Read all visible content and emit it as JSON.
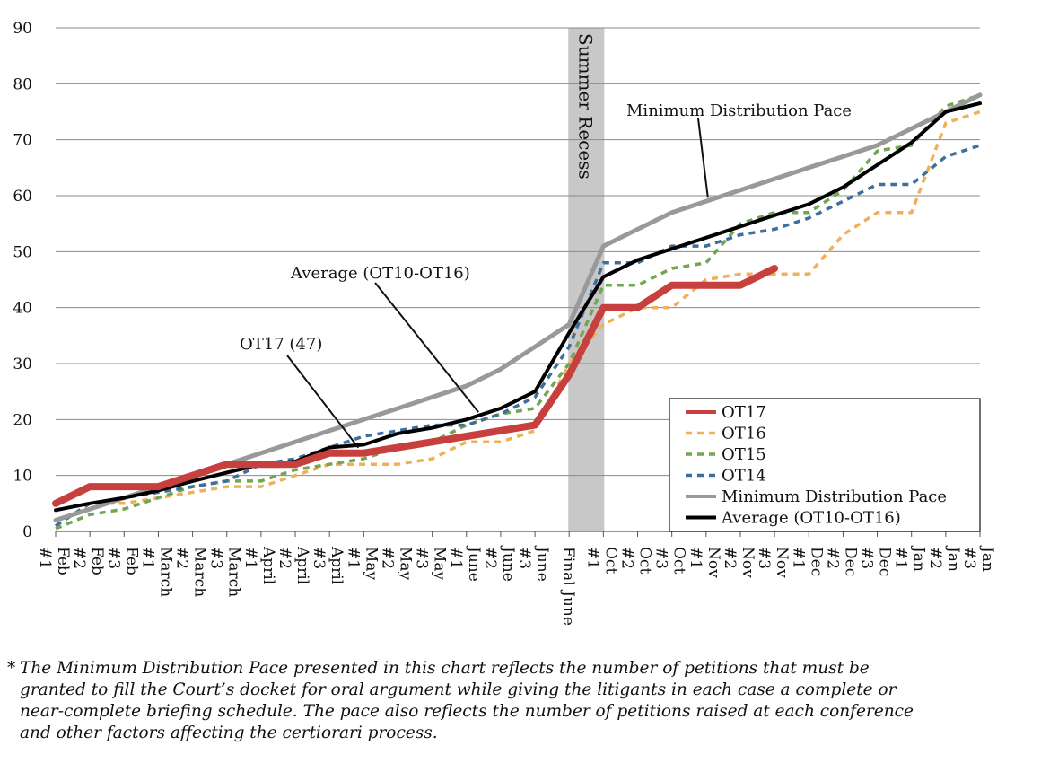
{
  "chart_data": {
    "type": "line",
    "title": "",
    "xlabel": "",
    "ylabel": "",
    "ylim": [
      0,
      90
    ],
    "yticks": [
      0,
      10,
      20,
      30,
      40,
      50,
      60,
      70,
      80,
      90
    ],
    "grid": true,
    "legend_position": "bottom-right",
    "categories": [
      "Feb #1",
      "Feb #2",
      "Feb #3",
      "March #1",
      "March #2",
      "March #3",
      "April #1",
      "April #2",
      "April #3",
      "May #1",
      "May #2",
      "May #3",
      "June #1",
      "June #2",
      "June #3",
      "Final June",
      "Oct #1",
      "Oct #2",
      "Oct #3",
      "Nov #1",
      "Nov #2",
      "Nov #3",
      "Dec #1",
      "Dec #2",
      "Dec #3",
      "Jan #1",
      "Jan #2",
      "Jan #3"
    ],
    "shaded_band": {
      "label": "Summer Recess",
      "from_category": "Final June",
      "to_category": "Oct #1",
      "color": "#c8c8c8"
    },
    "series": [
      {
        "name": "OT17",
        "color": "#c8403d",
        "dash": "solid",
        "width": 8,
        "values": [
          5,
          8,
          8,
          8,
          10,
          12,
          12,
          12,
          14,
          14,
          15,
          16,
          17,
          18,
          19,
          28,
          40,
          40,
          44,
          44,
          44,
          47,
          null,
          null,
          null,
          null,
          null,
          null
        ]
      },
      {
        "name": "OT16",
        "color": "#f0b05a",
        "dash": "dashed",
        "width": 3.5,
        "values": [
          1,
          5,
          5,
          6,
          7,
          8,
          8,
          10,
          12,
          12,
          12,
          13,
          16,
          16,
          18,
          30,
          37,
          40,
          40,
          45,
          46,
          46,
          46,
          53,
          57,
          57,
          73,
          75
        ]
      },
      {
        "name": "OT15",
        "color": "#72a653",
        "dash": "dashed",
        "width": 3.5,
        "values": [
          0.5,
          3,
          4,
          6,
          8,
          9,
          9,
          11,
          12,
          13,
          15,
          16,
          19,
          21,
          22,
          30,
          44,
          44,
          47,
          48,
          55,
          57,
          57,
          61,
          68,
          69,
          76,
          78
        ]
      },
      {
        "name": "OT14",
        "color": "#3d6e9c",
        "dash": "dashed",
        "width": 3.5,
        "values": [
          1,
          5,
          6,
          7,
          8,
          9,
          12,
          13,
          15,
          17,
          18,
          19,
          19,
          21,
          24,
          33,
          48,
          48,
          51,
          51,
          53,
          54,
          56,
          59,
          62,
          62,
          67,
          69
        ]
      },
      {
        "name": "Minimum Distribution Pace",
        "color": "#999999",
        "dash": "solid",
        "width": 5,
        "values": [
          2,
          4,
          6,
          8,
          10,
          12,
          14,
          16,
          18,
          20,
          22,
          24,
          26,
          29,
          33,
          37,
          51,
          54,
          57,
          59,
          61,
          63,
          65,
          67,
          69,
          72,
          75,
          78
        ]
      },
      {
        "name": "Average (OT10-OT16)",
        "color": "#000000",
        "dash": "solid",
        "width": 4,
        "values": [
          3.8,
          5,
          6,
          7.3,
          9,
          10.5,
          12,
          12.5,
          15,
          15.5,
          17.5,
          18.5,
          20,
          22,
          25,
          35.5,
          45.5,
          48.5,
          50.5,
          52.5,
          54.5,
          56.5,
          58.5,
          61.5,
          65.5,
          69.5,
          75,
          76.5
        ]
      }
    ],
    "annotations": [
      {
        "text": "Minimum Distribution Pace",
        "points_to": "Minimum Distribution Pace"
      },
      {
        "text": "Average (OT10-OT16)",
        "points_to": "Average (OT10-OT16)"
      },
      {
        "text": "OT17 (47)",
        "points_to": "OT17"
      },
      {
        "text": "Summer Recess",
        "points_to": "shaded_band"
      }
    ]
  },
  "footnote": {
    "marker": "*",
    "text": "The Minimum Distribution Pace presented in this chart reflects the number of petitions that must be granted to fill the Court’s docket for oral argument while giving the litigants in each case a complete or near-complete briefing schedule. The pace also reflects the number of petitions raised at each conference and other factors affecting the certiorari process."
  }
}
